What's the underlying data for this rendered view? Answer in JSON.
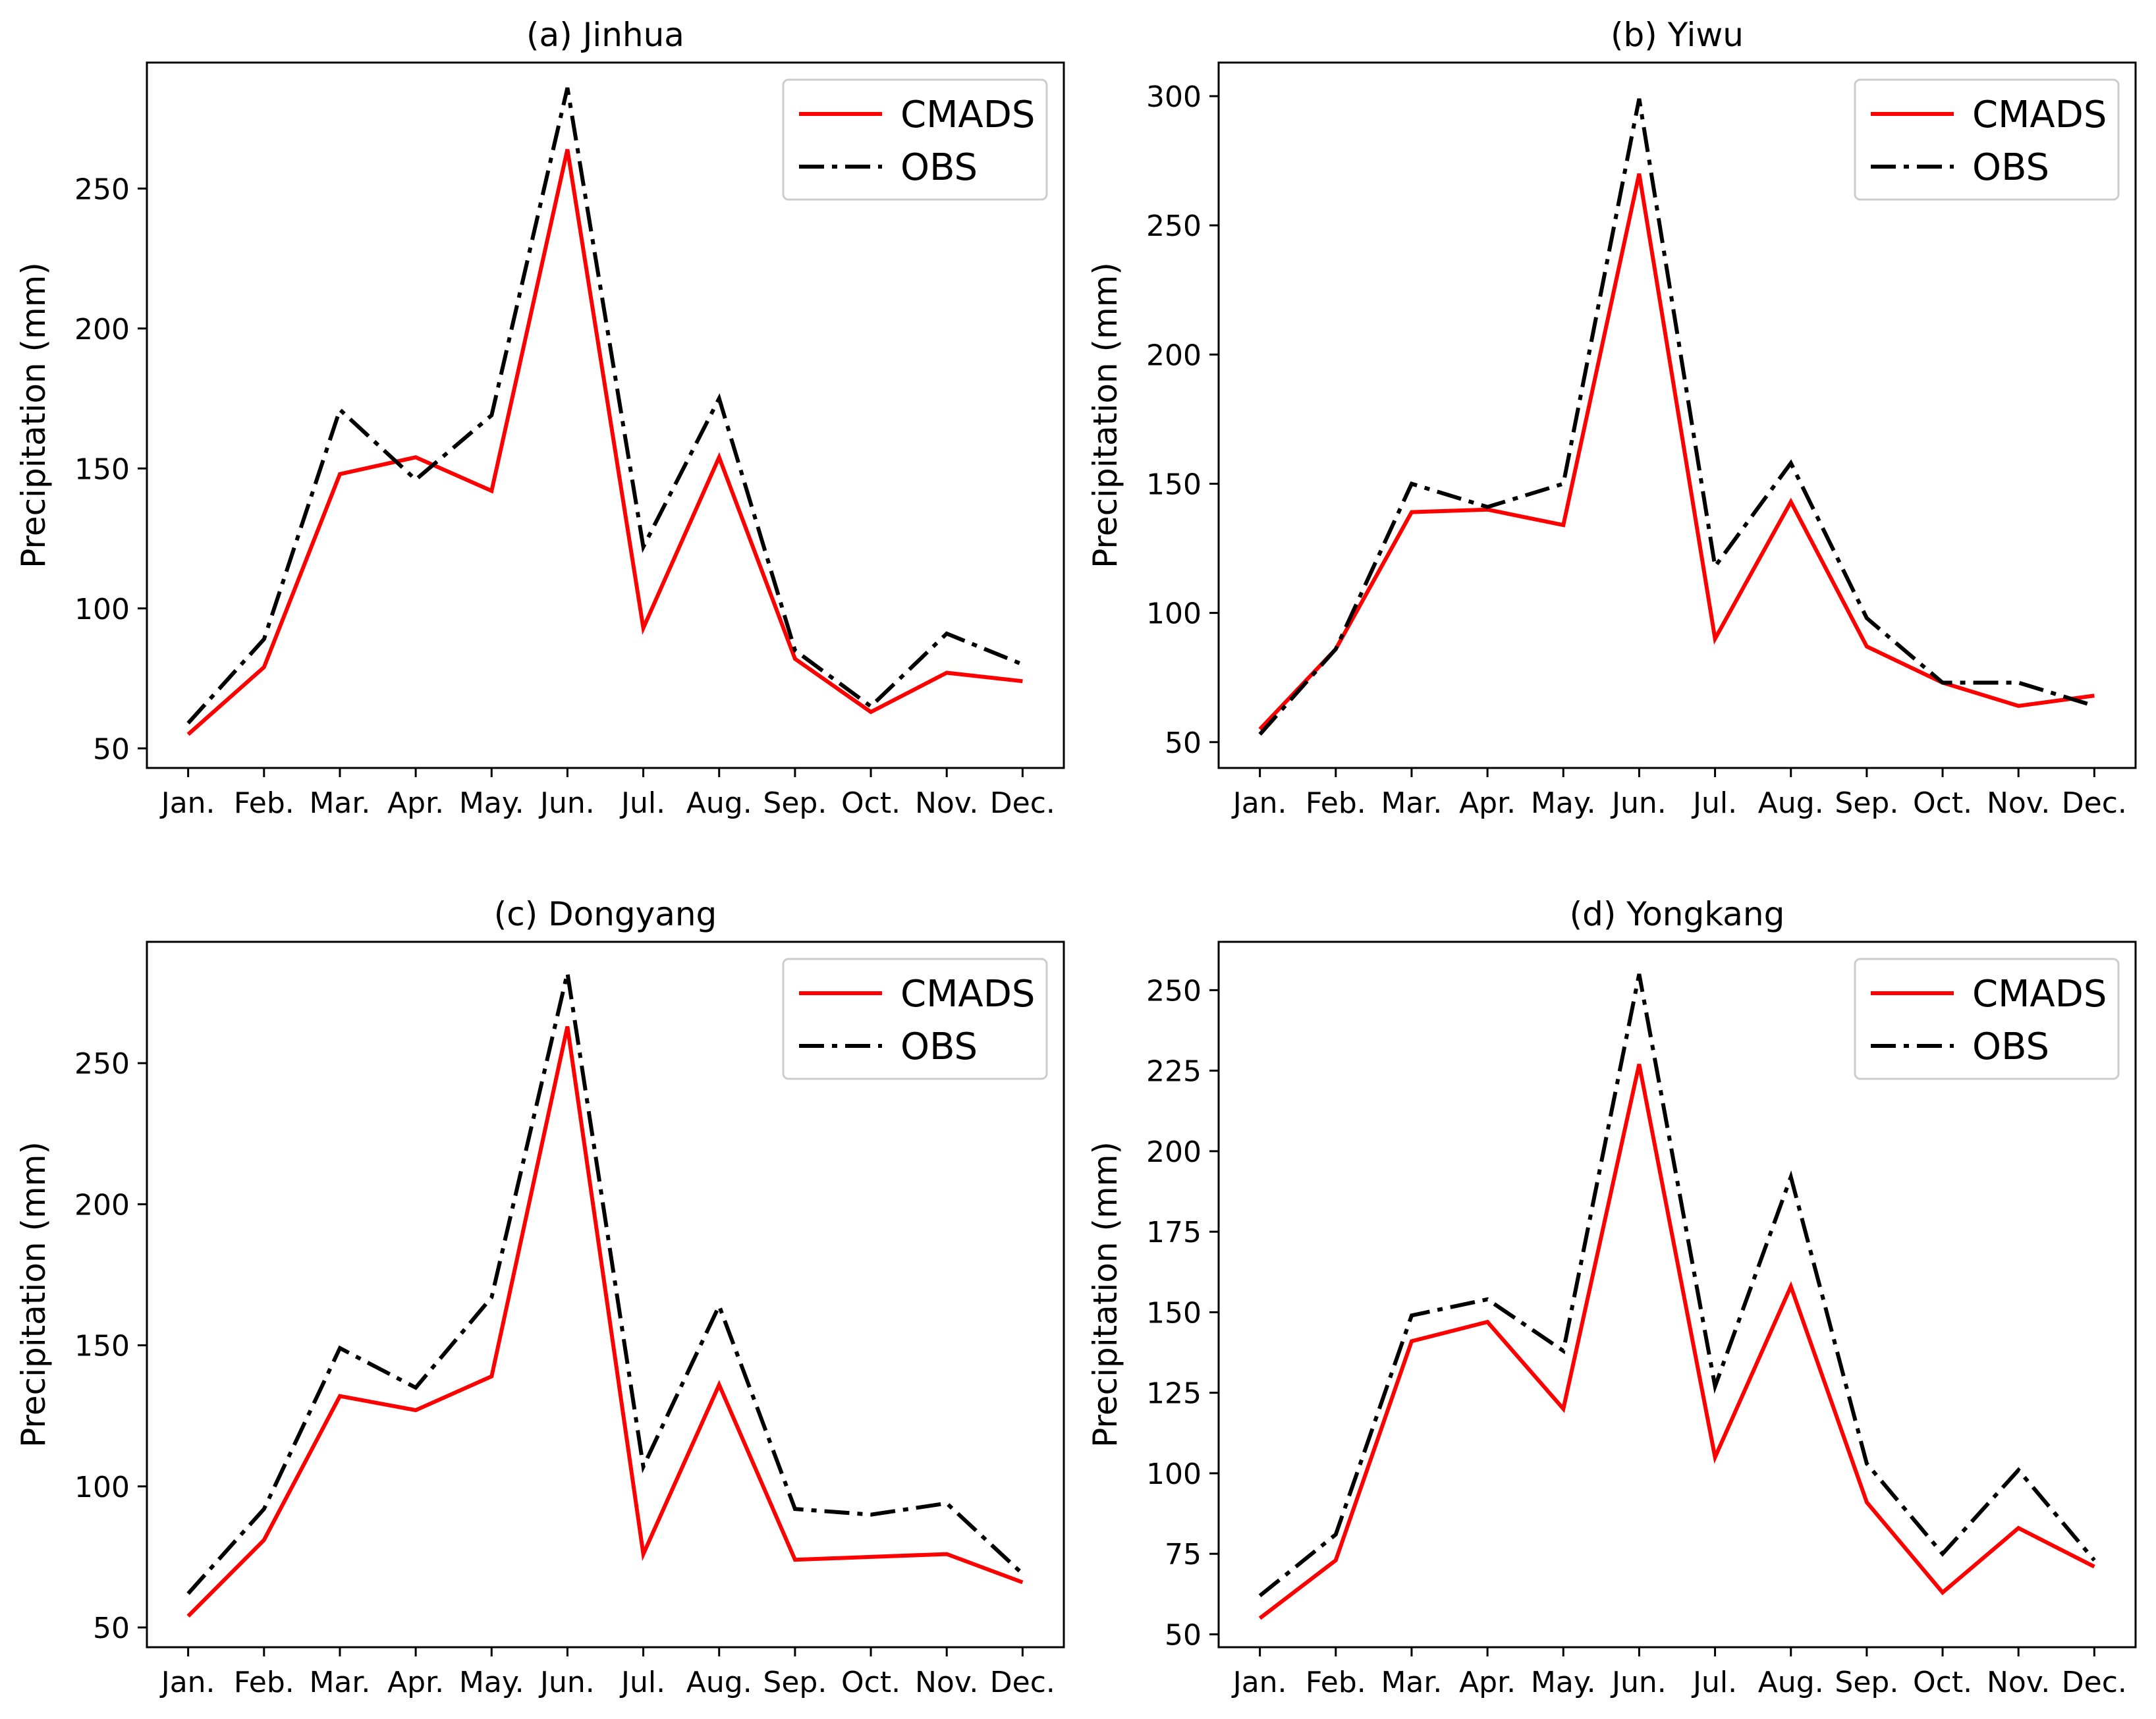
{
  "chart_data": [
    {
      "type": "line",
      "title": "(a) Jinhua",
      "ylabel": "Precipitation (mm)",
      "xlabel": "",
      "categories": [
        "Jan.",
        "Feb.",
        "Mar.",
        "Apr.",
        "May.",
        "Jun.",
        "Jul.",
        "Aug.",
        "Sep.",
        "Oct.",
        "Nov.",
        "Dec."
      ],
      "ylim": [
        43,
        295
      ],
      "yticks": [
        50,
        100,
        150,
        200,
        250
      ],
      "legend": "top-right",
      "series": [
        {
          "name": "CMADS",
          "color": "#ff0000",
          "style": "solid",
          "values": [
            55,
            79,
            148,
            154,
            142,
            264,
            93,
            154,
            82,
            63,
            77,
            74
          ]
        },
        {
          "name": "OBS",
          "color": "#000000",
          "style": "dashdot",
          "values": [
            59,
            89,
            171,
            146,
            169,
            286,
            122,
            175,
            85,
            65,
            91,
            80
          ]
        }
      ]
    },
    {
      "type": "line",
      "title": "(b) Yiwu",
      "ylabel": "Precipitation (mm)",
      "xlabel": "",
      "categories": [
        "Jan.",
        "Feb.",
        "Mar.",
        "Apr.",
        "May.",
        "Jun.",
        "Jul.",
        "Aug.",
        "Sep.",
        "Oct.",
        "Nov.",
        "Dec."
      ],
      "ylim": [
        40,
        313
      ],
      "yticks": [
        50,
        100,
        150,
        200,
        250,
        300
      ],
      "legend": "top-right",
      "series": [
        {
          "name": "CMADS",
          "color": "#ff0000",
          "style": "solid",
          "values": [
            55,
            86,
            139,
            140,
            134,
            270,
            90,
            143,
            87,
            73,
            64,
            68
          ]
        },
        {
          "name": "OBS",
          "color": "#000000",
          "style": "dashdot",
          "values": [
            53,
            86,
            150,
            141,
            150,
            299,
            118,
            158,
            98,
            73,
            73,
            64
          ]
        }
      ]
    },
    {
      "type": "line",
      "title": "(c) Dongyang",
      "ylabel": "Precipitation (mm)",
      "xlabel": "",
      "categories": [
        "Jan.",
        "Feb.",
        "Mar.",
        "Apr.",
        "May.",
        "Jun.",
        "Jul.",
        "Aug.",
        "Sep.",
        "Oct.",
        "Nov.",
        "Dec."
      ],
      "ylim": [
        43,
        293
      ],
      "yticks": [
        50,
        100,
        150,
        200,
        250
      ],
      "legend": "top-right",
      "series": [
        {
          "name": "CMADS",
          "color": "#ff0000",
          "style": "solid",
          "values": [
            54,
            81,
            132,
            127,
            139,
            263,
            76,
            136,
            74,
            75,
            76,
            66
          ]
        },
        {
          "name": "OBS",
          "color": "#000000",
          "style": "dashdot",
          "values": [
            62,
            92,
            149,
            135,
            167,
            282,
            107,
            164,
            92,
            90,
            94,
            69
          ]
        }
      ]
    },
    {
      "type": "line",
      "title": "(d) Yongkang",
      "ylabel": "Precipitation (mm)",
      "xlabel": "",
      "categories": [
        "Jan.",
        "Feb.",
        "Mar.",
        "Apr.",
        "May.",
        "Jun.",
        "Jul.",
        "Aug.",
        "Sep.",
        "Oct.",
        "Nov.",
        "Dec."
      ],
      "ylim": [
        46,
        265
      ],
      "yticks": [
        50,
        75,
        100,
        125,
        150,
        175,
        200,
        225,
        250
      ],
      "legend": "top-right",
      "series": [
        {
          "name": "CMADS",
          "color": "#ff0000",
          "style": "solid",
          "values": [
            55,
            73,
            141,
            147,
            120,
            227,
            105,
            158,
            91,
            63,
            83,
            71
          ]
        },
        {
          "name": "OBS",
          "color": "#000000",
          "style": "dashdot",
          "values": [
            62,
            81,
            149,
            154,
            138,
            255,
            127,
            192,
            103,
            75,
            101,
            73
          ]
        }
      ]
    }
  ]
}
